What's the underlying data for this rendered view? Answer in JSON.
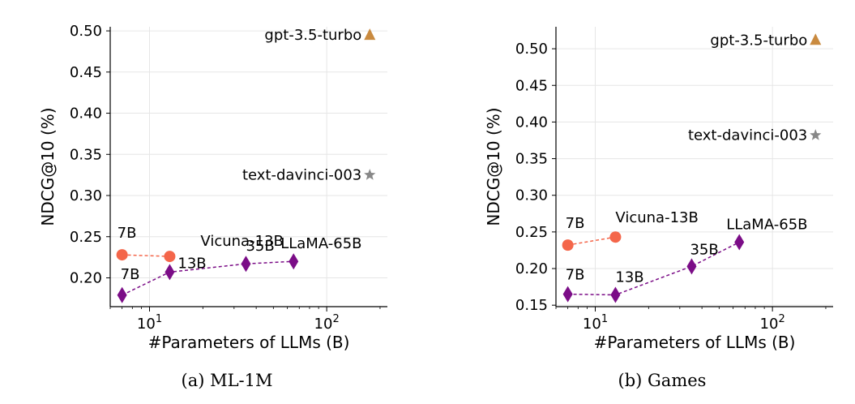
{
  "chart_data": [
    {
      "type": "scatter",
      "caption": "(a) ML-1M",
      "xlabel": "#Parameters of LLMs (B)",
      "ylabel": "NDCG@10 (%)",
      "xscale": "log",
      "xlim": [
        6,
        220
      ],
      "ylim": [
        0.165,
        0.505
      ],
      "x_ticks": [
        {
          "value": 10,
          "base": "10",
          "exp": "1"
        },
        {
          "value": 100,
          "base": "10",
          "exp": "2"
        }
      ],
      "y_ticks": [
        0.2,
        0.25,
        0.3,
        0.35,
        0.4,
        0.45,
        0.5
      ],
      "y_tick_labels": [
        "0.20",
        "0.25",
        "0.30",
        "0.35",
        "0.40",
        "0.45",
        "0.50"
      ],
      "grid": true,
      "series": [
        {
          "marker": "circle",
          "color": "#f4664a",
          "line": "dashed",
          "points": [
            {
              "x": 7,
              "y": 0.228,
              "label": "7B"
            },
            {
              "x": 13,
              "y": 0.226,
              "label": "Vicuna-13B"
            }
          ]
        },
        {
          "marker": "diamond",
          "color": "#7b0d87",
          "line": "dashed",
          "points": [
            {
              "x": 7,
              "y": 0.179,
              "label": "7B"
            },
            {
              "x": 13,
              "y": 0.207,
              "label": "13B"
            },
            {
              "x": 35,
              "y": 0.217,
              "label": "35B"
            },
            {
              "x": 65,
              "y": 0.22,
              "label": "LLaMA-65B"
            }
          ]
        },
        {
          "marker": "triangle",
          "color": "#c98a3f",
          "line": "none",
          "points": [
            {
              "x": 175,
              "y": 0.495,
              "label": "gpt-3.5-turbo"
            }
          ]
        },
        {
          "marker": "star",
          "color": "#888888",
          "line": "none",
          "points": [
            {
              "x": 175,
              "y": 0.325,
              "label": "text-davinci-003"
            }
          ]
        }
      ]
    },
    {
      "type": "scatter",
      "caption": "(b) Games",
      "xlabel": "#Parameters of LLMs (B)",
      "ylabel": "NDCG@10 (%)",
      "xscale": "log",
      "xlim": [
        6,
        220
      ],
      "ylim": [
        0.148,
        0.53
      ],
      "x_ticks": [
        {
          "value": 10,
          "base": "10",
          "exp": "1"
        },
        {
          "value": 100,
          "base": "10",
          "exp": "2"
        }
      ],
      "y_ticks": [
        0.15,
        0.2,
        0.25,
        0.3,
        0.35,
        0.4,
        0.45,
        0.5
      ],
      "y_tick_labels": [
        "0.15",
        "0.20",
        "0.25",
        "0.30",
        "0.35",
        "0.40",
        "0.45",
        "0.50"
      ],
      "grid": true,
      "series": [
        {
          "marker": "circle",
          "color": "#f4664a",
          "line": "dashed",
          "points": [
            {
              "x": 7,
              "y": 0.232,
              "label": "7B"
            },
            {
              "x": 13,
              "y": 0.243,
              "label": "Vicuna-13B"
            }
          ]
        },
        {
          "marker": "diamond",
          "color": "#7b0d87",
          "line": "dashed",
          "points": [
            {
              "x": 7,
              "y": 0.165,
              "label": "7B"
            },
            {
              "x": 13,
              "y": 0.164,
              "label": "13B"
            },
            {
              "x": 35,
              "y": 0.203,
              "label": "35B"
            },
            {
              "x": 65,
              "y": 0.236,
              "label": "LLaMA-65B"
            }
          ]
        },
        {
          "marker": "triangle",
          "color": "#c98a3f",
          "line": "none",
          "points": [
            {
              "x": 175,
              "y": 0.512,
              "label": "gpt-3.5-turbo"
            }
          ]
        },
        {
          "marker": "star",
          "color": "#888888",
          "line": "none",
          "points": [
            {
              "x": 175,
              "y": 0.382,
              "label": "text-davinci-003"
            }
          ]
        }
      ]
    }
  ]
}
